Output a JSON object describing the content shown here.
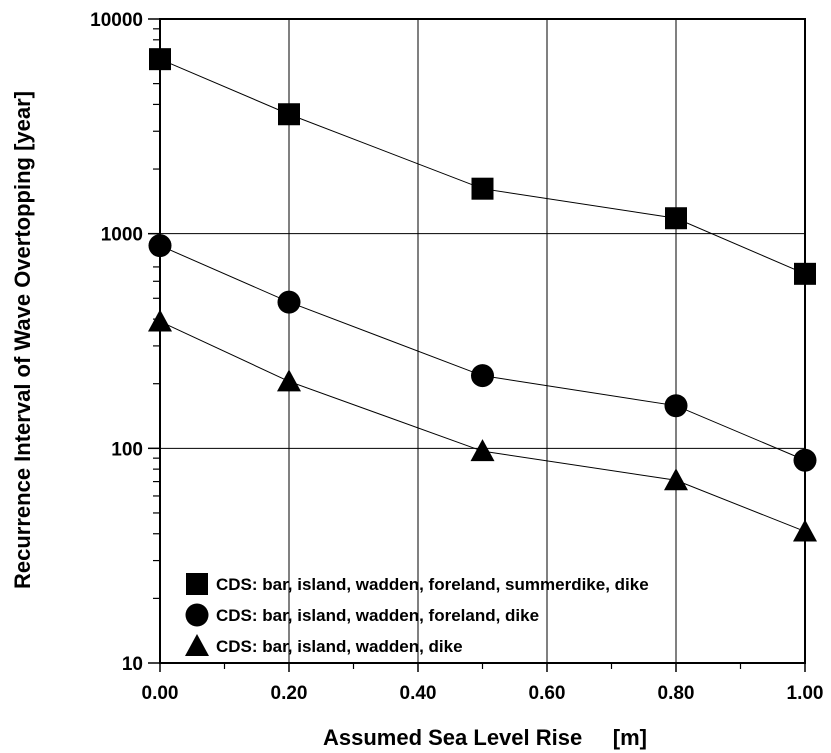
{
  "chart_data": {
    "type": "line",
    "xlabel": "Assumed Sea Level Rise     [m]",
    "ylabel": "Recurrence Interval of Wave Overtopping  [year]",
    "x_scale": "linear",
    "y_scale": "log",
    "xlim": [
      0,
      1
    ],
    "ylim": [
      10,
      10000
    ],
    "grid": true,
    "x_ticks": [
      0,
      0.2,
      0.4,
      0.6,
      0.8,
      1.0
    ],
    "x_tick_labels": [
      "0.00",
      "0.20",
      "0.40",
      "0.60",
      "0.80",
      "1.00"
    ],
    "y_ticks": [
      10,
      100,
      1000,
      10000
    ],
    "y_tick_labels": [
      "10",
      "100",
      "1000",
      "10000"
    ],
    "legend_position": "bottom-left",
    "x": [
      0.0,
      0.2,
      0.5,
      0.8,
      1.0
    ],
    "series": [
      {
        "name": "CDS: bar, island, wadden, foreland, summerdike, dike",
        "marker": "square",
        "values": [
          6500,
          3600,
          1620,
          1180,
          650
        ]
      },
      {
        "name": "CDS: bar, island, wadden, foreland, dike",
        "marker": "circle",
        "values": [
          880,
          480,
          218,
          158,
          88
        ]
      },
      {
        "name": "CDS: bar, island, wadden, dike",
        "marker": "triangle",
        "values": [
          390,
          205,
          97,
          71,
          41
        ]
      }
    ],
    "color": "#000000"
  }
}
